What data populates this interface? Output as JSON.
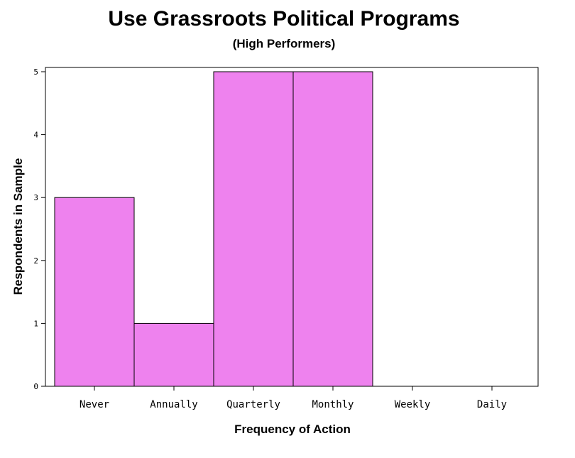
{
  "chart_data": {
    "type": "bar",
    "title": "Use Grassroots Political Programs",
    "subtitle": "(High Performers)",
    "xlabel": "Frequency of Action",
    "ylabel": "Respondents in Sample",
    "categories": [
      "Never",
      "Annually",
      "Quarterly",
      "Monthly",
      "Weekly",
      "Daily"
    ],
    "values": [
      3,
      1,
      5,
      5,
      0,
      0
    ],
    "ylim": [
      0,
      5
    ],
    "yticks": [
      0,
      1,
      2,
      3,
      4,
      5
    ],
    "grid": false,
    "bar_color": "#ee82ee"
  }
}
